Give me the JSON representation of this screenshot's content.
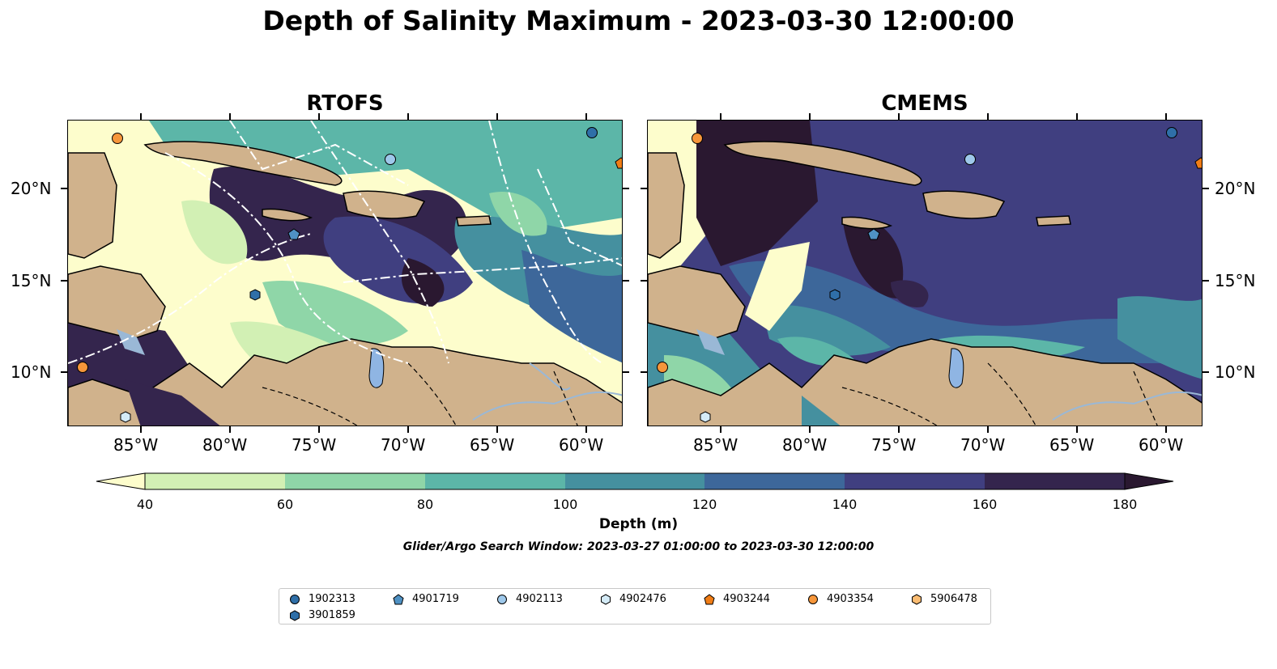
{
  "title": "Depth of Salinity Maximum - 2023-03-30 12:00:00",
  "panels": [
    {
      "title": "RTOFS"
    },
    {
      "title": "CMEMS"
    }
  ],
  "axes": {
    "lon_ticks": [
      "85°W",
      "80°W",
      "75°W",
      "70°W",
      "65°W",
      "60°W"
    ],
    "lat_ticks": [
      "20°N",
      "15°N",
      "10°N"
    ]
  },
  "colorbar": {
    "label": "Depth (m)",
    "ticks": [
      "40",
      "60",
      "80",
      "100",
      "120",
      "140",
      "160",
      "180"
    ],
    "colors": [
      "#fdfdcc",
      "#d2f0b4",
      "#8fd6a8",
      "#5cb6a8",
      "#45909f",
      "#3d679a",
      "#403f80",
      "#34254d",
      "#2a1830"
    ]
  },
  "search_window": "Glider/Argo Search Window: 2023-03-27 01:00:00 to 2023-03-30 12:00:00",
  "legend": [
    {
      "id": "1902313",
      "marker": "circle",
      "color": "#2f6fa8"
    },
    {
      "id": "4901719",
      "marker": "pentagon",
      "color": "#4f91c3"
    },
    {
      "id": "4902113",
      "marker": "circle",
      "color": "#9ec8ea"
    },
    {
      "id": "4902476",
      "marker": "hexagon",
      "color": "#d4ebf7"
    },
    {
      "id": "4903244",
      "marker": "pentagon",
      "color": "#f07d16"
    },
    {
      "id": "4903354",
      "marker": "circle",
      "color": "#f6963a"
    },
    {
      "id": "5906478",
      "marker": "hexagon",
      "color": "#fbbc72"
    },
    {
      "id": "3901859",
      "marker": "hexagon",
      "color": "#2f6fa8"
    }
  ],
  "colors": {
    "land": "#d0b28c",
    "lake": "#8fb5e3",
    "river": "#9ab8d6"
  }
}
